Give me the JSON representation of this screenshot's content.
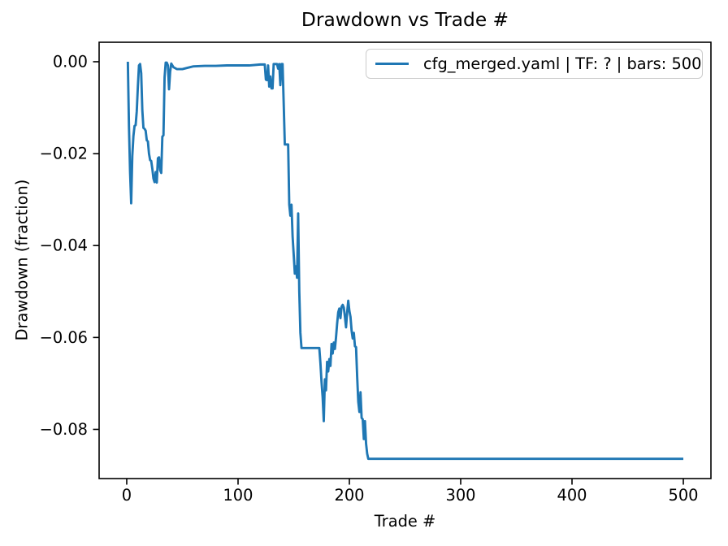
{
  "figure": {
    "title": "Drawdown vs Trade #",
    "background": "#ffffff"
  },
  "legend": {
    "label": "cfg_merged.yaml | TF: ? | bars: 500",
    "line_color": "#1f77b4",
    "position": "upper right"
  },
  "chart_data": {
    "type": "line",
    "title": "Drawdown vs Trade #",
    "xlabel": "Trade #",
    "ylabel": "Drawdown (fraction)",
    "grid": false,
    "legend_position": "upper right",
    "xlim": [
      -24.8,
      524.8
    ],
    "ylim": [
      -0.0907,
      0.00424
    ],
    "xticks": {
      "values": [
        0,
        100,
        200,
        300,
        400,
        500
      ],
      "labels": [
        "0",
        "100",
        "200",
        "300",
        "400",
        "500"
      ]
    },
    "yticks": {
      "values": [
        0.0,
        -0.02,
        -0.04,
        -0.06,
        -0.08
      ],
      "labels": [
        "0.00",
        "−0.02",
        "−0.04",
        "−0.06",
        "−0.08"
      ]
    },
    "axis_color": "#000000",
    "series": [
      {
        "name": "cfg_merged.yaml | TF: ? | bars: 500",
        "color": "#1f77b4",
        "x": [
          1,
          2,
          3,
          4,
          5,
          6,
          7,
          8,
          9,
          10,
          11,
          12,
          13,
          14,
          15,
          16,
          17,
          18,
          19,
          20,
          21,
          22,
          23,
          24,
          25,
          26,
          27,
          28,
          29,
          30,
          31,
          32,
          33,
          34,
          35,
          36,
          37,
          38,
          39,
          40,
          42,
          45,
          50,
          55,
          60,
          70,
          80,
          90,
          100,
          110,
          120,
          124,
          125,
          126,
          127,
          128,
          129,
          130,
          131,
          132,
          135,
          136,
          137,
          138,
          139,
          140,
          141,
          142,
          143,
          145,
          146,
          147,
          148,
          149,
          150,
          151,
          152,
          153,
          154,
          155,
          156,
          157,
          173,
          174,
          175,
          176,
          177,
          178,
          179,
          180,
          181,
          182,
          183,
          184,
          185,
          186,
          187,
          188,
          189,
          190,
          191,
          192,
          193,
          194,
          195,
          196,
          197,
          198,
          199,
          200,
          201,
          202,
          203,
          204,
          205,
          206,
          207,
          208,
          209,
          210,
          211,
          212,
          213,
          214,
          215,
          216,
          217,
          220,
          250,
          300,
          400,
          500
        ],
        "y": [
          0.0,
          -0.014,
          -0.024,
          -0.0308,
          -0.0205,
          -0.0162,
          -0.014,
          -0.0138,
          -0.0108,
          -0.0054,
          -0.0008,
          -0.0005,
          -0.0025,
          -0.0105,
          -0.0144,
          -0.0146,
          -0.015,
          -0.0171,
          -0.0173,
          -0.02,
          -0.0214,
          -0.0216,
          -0.0233,
          -0.0254,
          -0.0262,
          -0.024,
          -0.0263,
          -0.021,
          -0.0208,
          -0.0236,
          -0.0242,
          -0.0163,
          -0.016,
          -0.0034,
          -0.0002,
          -0.0002,
          -0.0008,
          -0.006,
          -0.0022,
          -0.0004,
          -0.0012,
          -0.0016,
          -0.0016,
          -0.0013,
          -0.001,
          -0.0009,
          -0.0009,
          -0.0008,
          -0.0008,
          -0.0008,
          -0.0006,
          -0.0006,
          -0.0039,
          -0.004,
          -0.0008,
          -0.0054,
          -0.0032,
          -0.0058,
          -0.0058,
          -0.0005,
          -0.0005,
          -0.0015,
          -0.0005,
          -0.0051,
          -0.0005,
          -0.0005,
          -0.009,
          -0.018,
          -0.018,
          -0.018,
          -0.0311,
          -0.0335,
          -0.0311,
          -0.038,
          -0.042,
          -0.0461,
          -0.0445,
          -0.047,
          -0.033,
          -0.05,
          -0.059,
          -0.0623,
          -0.0623,
          -0.0656,
          -0.0697,
          -0.073,
          -0.0782,
          -0.0691,
          -0.0715,
          -0.0653,
          -0.0674,
          -0.0647,
          -0.0662,
          -0.0614,
          -0.0635,
          -0.0611,
          -0.0625,
          -0.06,
          -0.057,
          -0.0545,
          -0.0537,
          -0.0558,
          -0.0533,
          -0.0529,
          -0.0535,
          -0.0555,
          -0.0578,
          -0.0545,
          -0.052,
          -0.0542,
          -0.0555,
          -0.0585,
          -0.0602,
          -0.059,
          -0.0619,
          -0.0621,
          -0.0685,
          -0.074,
          -0.0762,
          -0.0719,
          -0.0775,
          -0.0778,
          -0.0821,
          -0.0782,
          -0.0831,
          -0.0853,
          -0.0864,
          -0.0864,
          -0.0864,
          -0.0864,
          -0.0864,
          -0.0864
        ]
      }
    ]
  }
}
